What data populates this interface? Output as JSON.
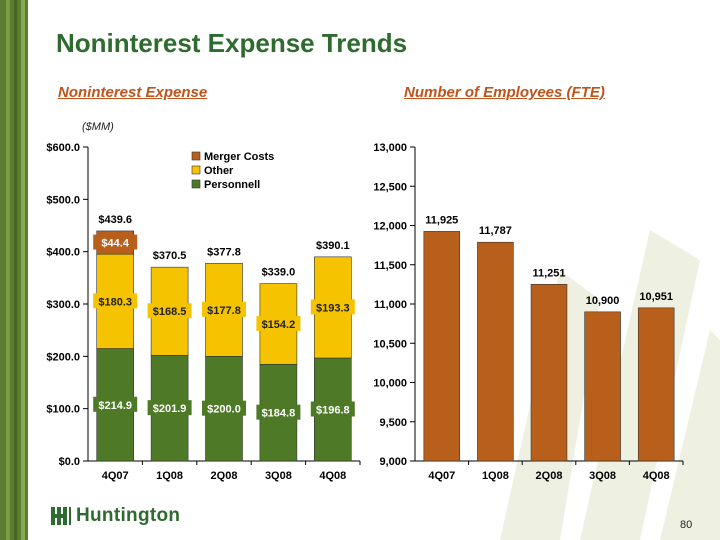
{
  "slide": {
    "title": "Noninterest Expense Trends",
    "page_number": "80",
    "logo_text": "Huntington",
    "accent_color": "#2e6b2e",
    "subtitle_color": "#c0531a"
  },
  "chart_data": [
    {
      "type": "bar",
      "stacked": true,
      "title": "Noninterest Expense",
      "units": "($MM)",
      "categories": [
        "4Q07",
        "1Q08",
        "2Q08",
        "3Q08",
        "4Q08"
      ],
      "series": [
        {
          "name": "Personnell",
          "color": "#4e7a27",
          "values": [
            214.9,
            201.9,
            200.0,
            184.8,
            196.8
          ],
          "labels": [
            "$214.9",
            "$201.9",
            "$200.0",
            "$184.8",
            "$196.8"
          ]
        },
        {
          "name": "Other",
          "color": "#f5c300",
          "values": [
            180.3,
            168.5,
            177.8,
            154.2,
            193.3
          ],
          "labels": [
            "$180.3",
            "$168.5",
            "$177.8",
            "$154.2",
            "$193.3"
          ]
        },
        {
          "name": "Merger Costs",
          "color": "#b8601b",
          "values": [
            44.4,
            0,
            0,
            0,
            0
          ],
          "labels": [
            "$44.4",
            "",
            "",
            "",
            ""
          ]
        }
      ],
      "totals": [
        "$439.6",
        "$370.5",
        "$377.8",
        "$339.0",
        "$390.1"
      ],
      "ylim": [
        0,
        600
      ],
      "yticks": [
        0,
        100,
        200,
        300,
        400,
        500,
        600
      ],
      "ytick_labels": [
        "$0.0",
        "$100.0",
        "$200.0",
        "$300.0",
        "$400.0",
        "$500.0",
        "$600.0"
      ],
      "legend": [
        "Merger Costs",
        "Other",
        "Personnell"
      ],
      "legend_position": "top-right",
      "grid": false
    },
    {
      "type": "bar",
      "title": "Number of Employees (FTE)",
      "categories": [
        "4Q07",
        "1Q08",
        "2Q08",
        "3Q08",
        "4Q08"
      ],
      "values": [
        11925,
        11787,
        11251,
        10900,
        10951
      ],
      "value_labels": [
        "11,925",
        "11,787",
        "11,251",
        "10,900",
        "10,951"
      ],
      "color": "#b8601b",
      "ylim": [
        9000,
        13000
      ],
      "yticks": [
        9000,
        9500,
        10000,
        10500,
        11000,
        11500,
        12000,
        12500,
        13000
      ],
      "ytick_labels": [
        "9,000",
        "9,500",
        "10,000",
        "10,500",
        "11,000",
        "11,500",
        "12,000",
        "12,500",
        "13,000"
      ],
      "grid": false
    }
  ]
}
